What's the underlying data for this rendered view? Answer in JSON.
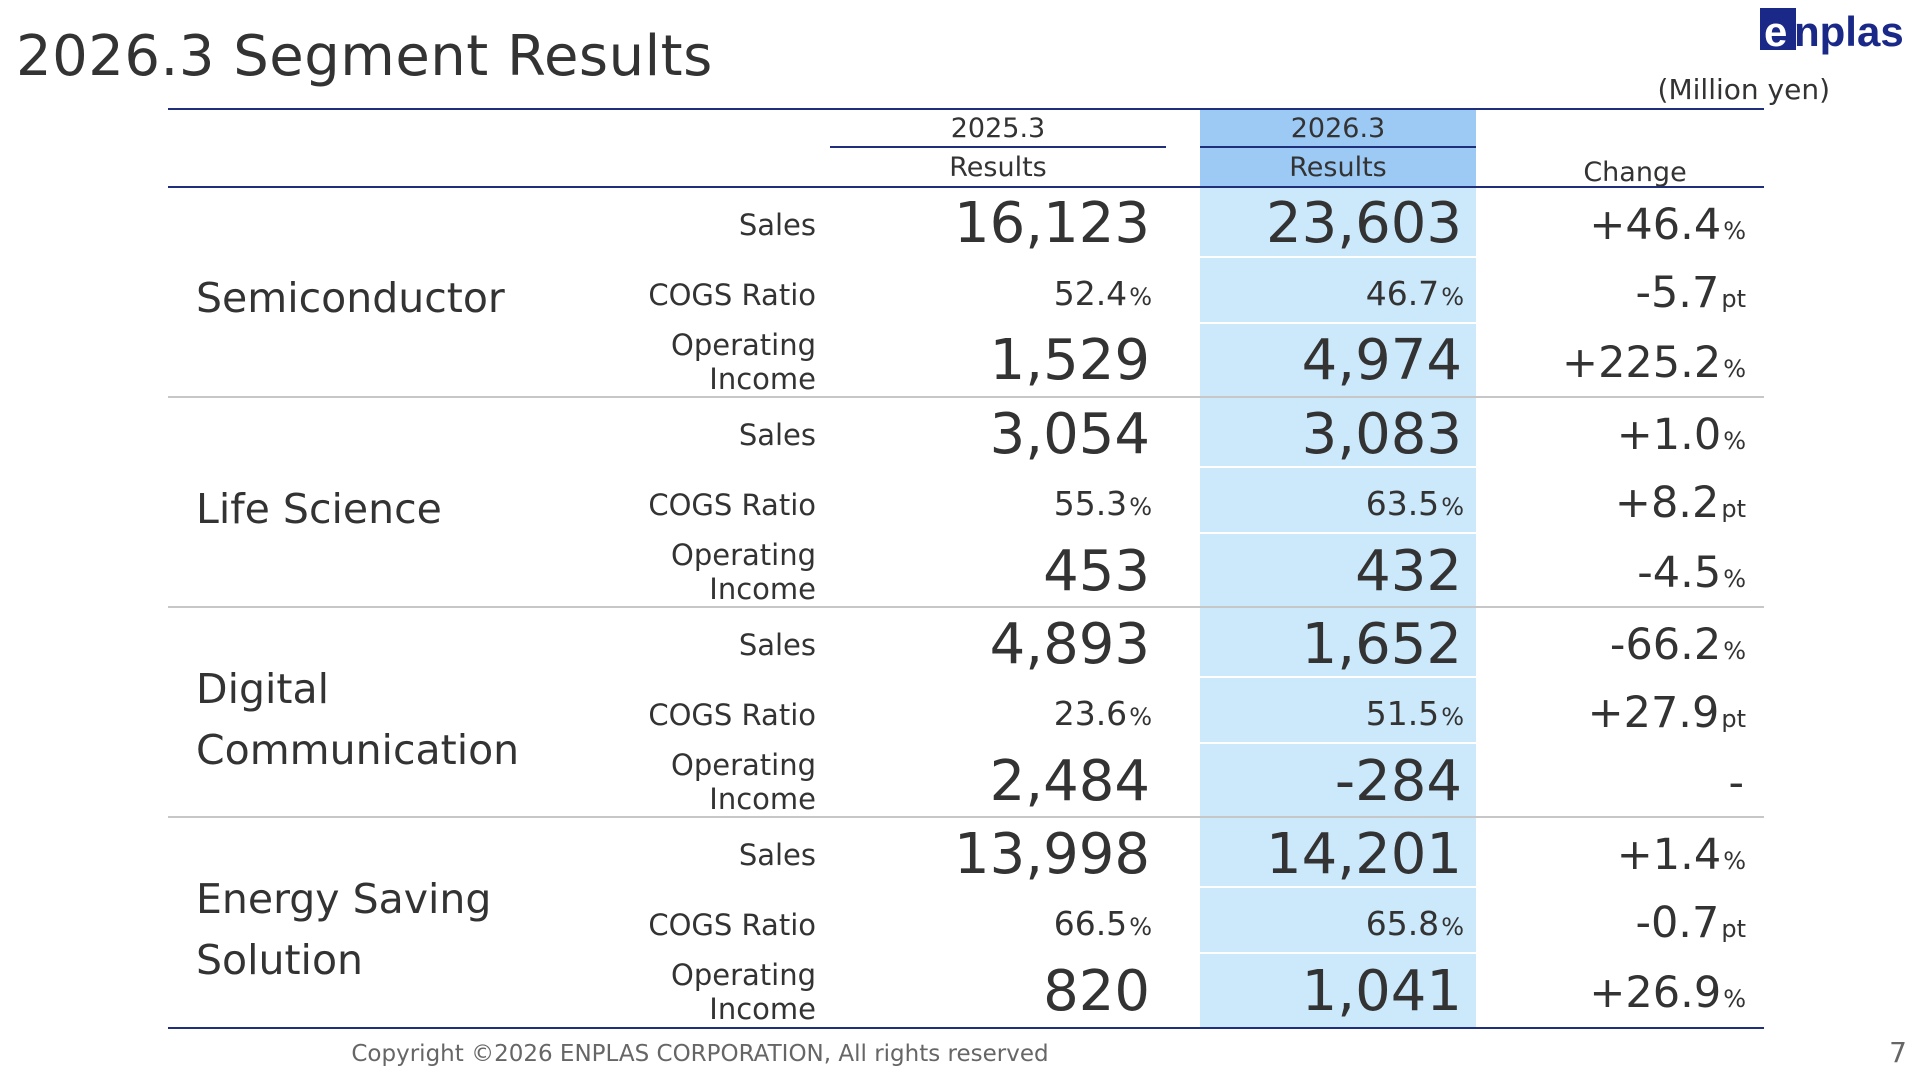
{
  "title": "2026.3 Segment Results",
  "logo": {
    "text": "enplas",
    "color": "#1a2987"
  },
  "unit": "(Million yen)",
  "header": {
    "col_prev_year": "2025.3",
    "col_prev_sub": "Results",
    "col_curr_year": "2026.3",
    "col_curr_sub": "Results",
    "col_change": "Change"
  },
  "segments": [
    {
      "name_lines": [
        "Semiconductor"
      ],
      "rows": [
        {
          "metric": [
            "Sales"
          ],
          "prev": "16,123",
          "prev_suffix": "",
          "curr": "23,603",
          "curr_suffix": "",
          "change": "+46.4",
          "change_suffix": "%"
        },
        {
          "metric": [
            "COGS Ratio"
          ],
          "prev": "52.4",
          "prev_suffix": "%",
          "curr": "46.7",
          "curr_suffix": "%",
          "change": "-5.7",
          "change_suffix": "pt"
        },
        {
          "metric": [
            "Operating",
            "Income"
          ],
          "prev": "1,529",
          "prev_suffix": "",
          "curr": "4,974",
          "curr_suffix": "",
          "change": "+225.2",
          "change_suffix": "%"
        }
      ]
    },
    {
      "name_lines": [
        "Life Science"
      ],
      "rows": [
        {
          "metric": [
            "Sales"
          ],
          "prev": "3,054",
          "prev_suffix": "",
          "curr": "3,083",
          "curr_suffix": "",
          "change": "+1.0",
          "change_suffix": "%"
        },
        {
          "metric": [
            "COGS Ratio"
          ],
          "prev": "55.3",
          "prev_suffix": "%",
          "curr": "63.5",
          "curr_suffix": "%",
          "change": "+8.2",
          "change_suffix": "pt"
        },
        {
          "metric": [
            "Operating",
            "Income"
          ],
          "prev": "453",
          "prev_suffix": "",
          "curr": "432",
          "curr_suffix": "",
          "change": "-4.5",
          "change_suffix": "%"
        }
      ]
    },
    {
      "name_lines": [
        "Digital",
        "Communication"
      ],
      "rows": [
        {
          "metric": [
            "Sales"
          ],
          "prev": "4,893",
          "prev_suffix": "",
          "curr": "1,652",
          "curr_suffix": "",
          "change": "-66.2",
          "change_suffix": "%"
        },
        {
          "metric": [
            "COGS Ratio"
          ],
          "prev": "23.6",
          "prev_suffix": "%",
          "curr": "51.5",
          "curr_suffix": "%",
          "change": "+27.9",
          "change_suffix": "pt"
        },
        {
          "metric": [
            "Operating",
            "Income"
          ],
          "prev": "2,484",
          "prev_suffix": "",
          "curr": "-284",
          "curr_suffix": "",
          "change": "-",
          "change_suffix": ""
        }
      ]
    },
    {
      "name_lines": [
        "Energy Saving",
        "Solution"
      ],
      "rows": [
        {
          "metric": [
            "Sales"
          ],
          "prev": "13,998",
          "prev_suffix": "",
          "curr": "14,201",
          "curr_suffix": "",
          "change": "+1.4",
          "change_suffix": "%"
        },
        {
          "metric": [
            "COGS Ratio"
          ],
          "prev": "66.5",
          "prev_suffix": "%",
          "curr": "65.8",
          "curr_suffix": "%",
          "change": "-0.7",
          "change_suffix": "pt"
        },
        {
          "metric": [
            "Operating",
            "Income"
          ],
          "prev": "820",
          "prev_suffix": "",
          "curr": "1,041",
          "curr_suffix": "",
          "change": "+26.9",
          "change_suffix": "%"
        }
      ]
    }
  ],
  "footer": {
    "copyright": "Copyright ©2026 ENPLAS CORPORATION, All rights reserved",
    "page_number": "7"
  }
}
